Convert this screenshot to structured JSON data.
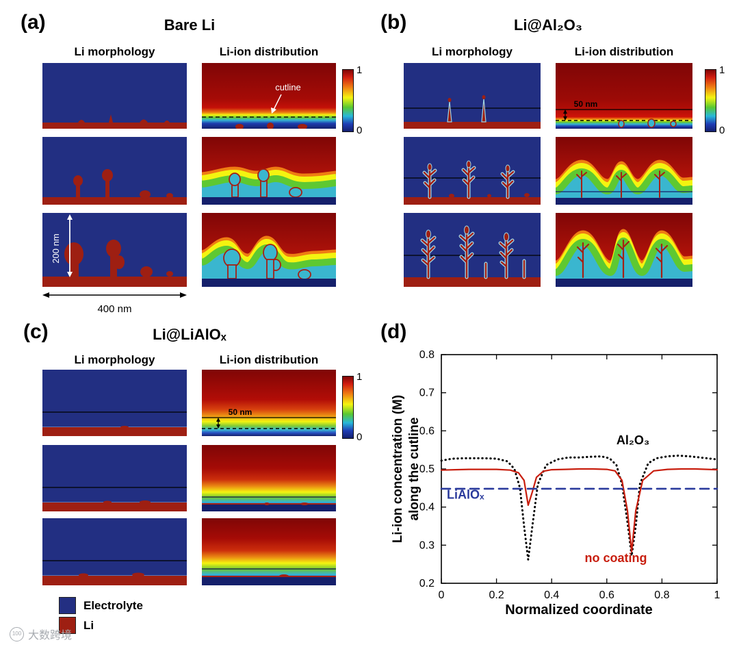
{
  "panels": {
    "a": {
      "label": "(a)",
      "title": "Bare Li",
      "col_morphology": "Li morphology",
      "col_distribution": "Li-ion distribution",
      "colorbar_max": "1",
      "colorbar_min": "0",
      "annotations": {
        "cutline": "cutline",
        "height_scale": "200 nm",
        "width_scale": "400 nm"
      }
    },
    "b": {
      "label": "(b)",
      "title": "Li@Al₂O₃",
      "col_morphology": "Li morphology",
      "col_distribution": "Li-ion distribution",
      "colorbar_max": "1",
      "colorbar_min": "0",
      "annotations": {
        "coating_thickness": "50 nm"
      }
    },
    "c": {
      "label": "(c)",
      "title": "Li@LiAlOₓ",
      "col_morphology": "Li morphology",
      "col_distribution": "Li-ion distribution",
      "colorbar_max": "1",
      "colorbar_min": "0",
      "annotations": {
        "coating_thickness": "50 nm"
      }
    },
    "d": {
      "label": "(d)"
    }
  },
  "legend": {
    "items": [
      {
        "label": "Electrolyte",
        "color": "#232f82"
      },
      {
        "label": "Li",
        "color": "#9e1f12"
      }
    ]
  },
  "watermark": {
    "icon_text": "100",
    "text": "大数跨境"
  },
  "chart_data": {
    "type": "line",
    "title": "",
    "xlabel": "Normalized coordinate",
    "ylabel": "Li-ion concentration (M) along the cutline",
    "ylabel_lines": [
      "Li-ion concentration (M)",
      "along the cutline"
    ],
    "xlim": [
      0,
      1
    ],
    "ylim": [
      0.2,
      0.8
    ],
    "xticks": [
      0,
      0.2,
      0.4,
      0.6,
      0.8,
      1
    ],
    "xtick_labels": [
      "0",
      "0.2",
      "0.4",
      "0.6",
      "0.8",
      "1"
    ],
    "yticks": [
      0.2,
      0.3,
      0.4,
      0.5,
      0.6,
      0.7,
      0.8
    ],
    "ytick_labels": [
      "0.2",
      "0.3",
      "0.4",
      "0.5",
      "0.6",
      "0.7",
      "0.8"
    ],
    "grid": false,
    "legend_position": "none",
    "series": [
      {
        "name": "Al₂O₃",
        "style": "dotted",
        "color": "#000000",
        "x": [
          0,
          0.04,
          0.08,
          0.12,
          0.16,
          0.2,
          0.24,
          0.265,
          0.285,
          0.3,
          0.315,
          0.33,
          0.35,
          0.38,
          0.42,
          0.46,
          0.5,
          0.54,
          0.58,
          0.61,
          0.635,
          0.655,
          0.675,
          0.69,
          0.705,
          0.72,
          0.75,
          0.78,
          0.82,
          0.86,
          0.9,
          0.94,
          1.0
        ],
        "y": [
          0.522,
          0.527,
          0.528,
          0.528,
          0.528,
          0.527,
          0.52,
          0.5,
          0.45,
          0.35,
          0.262,
          0.35,
          0.46,
          0.51,
          0.525,
          0.53,
          0.53,
          0.532,
          0.533,
          0.528,
          0.51,
          0.46,
          0.36,
          0.272,
          0.35,
          0.46,
          0.515,
          0.528,
          0.533,
          0.535,
          0.533,
          0.53,
          0.525
        ]
      },
      {
        "name": "no coating",
        "style": "solid",
        "color": "#c81e0e",
        "x": [
          0,
          0.05,
          0.1,
          0.15,
          0.2,
          0.25,
          0.28,
          0.3,
          0.315,
          0.33,
          0.345,
          0.37,
          0.4,
          0.45,
          0.5,
          0.55,
          0.6,
          0.63,
          0.655,
          0.675,
          0.69,
          0.705,
          0.73,
          0.77,
          0.82,
          0.87,
          0.92,
          1.0
        ],
        "y": [
          0.497,
          0.498,
          0.499,
          0.499,
          0.499,
          0.497,
          0.49,
          0.47,
          0.405,
          0.44,
          0.478,
          0.494,
          0.498,
          0.499,
          0.5,
          0.5,
          0.499,
          0.495,
          0.47,
          0.39,
          0.283,
          0.39,
          0.47,
          0.495,
          0.499,
          0.5,
          0.5,
          0.498
        ]
      },
      {
        "name": "LiAlOₓ",
        "style": "dashed",
        "color": "#2a3a9c",
        "x": [
          0,
          1
        ],
        "y": [
          0.448,
          0.448
        ]
      }
    ],
    "annotations": [
      {
        "text": "Al₂O₃",
        "x": 0.635,
        "y": 0.565,
        "color": "#000000"
      },
      {
        "text": "LiAlOₓ",
        "x": 0.02,
        "y": 0.422,
        "color": "#2a3a9c"
      },
      {
        "text": "no coating",
        "x": 0.52,
        "y": 0.256,
        "color": "#c81e0e"
      }
    ]
  }
}
